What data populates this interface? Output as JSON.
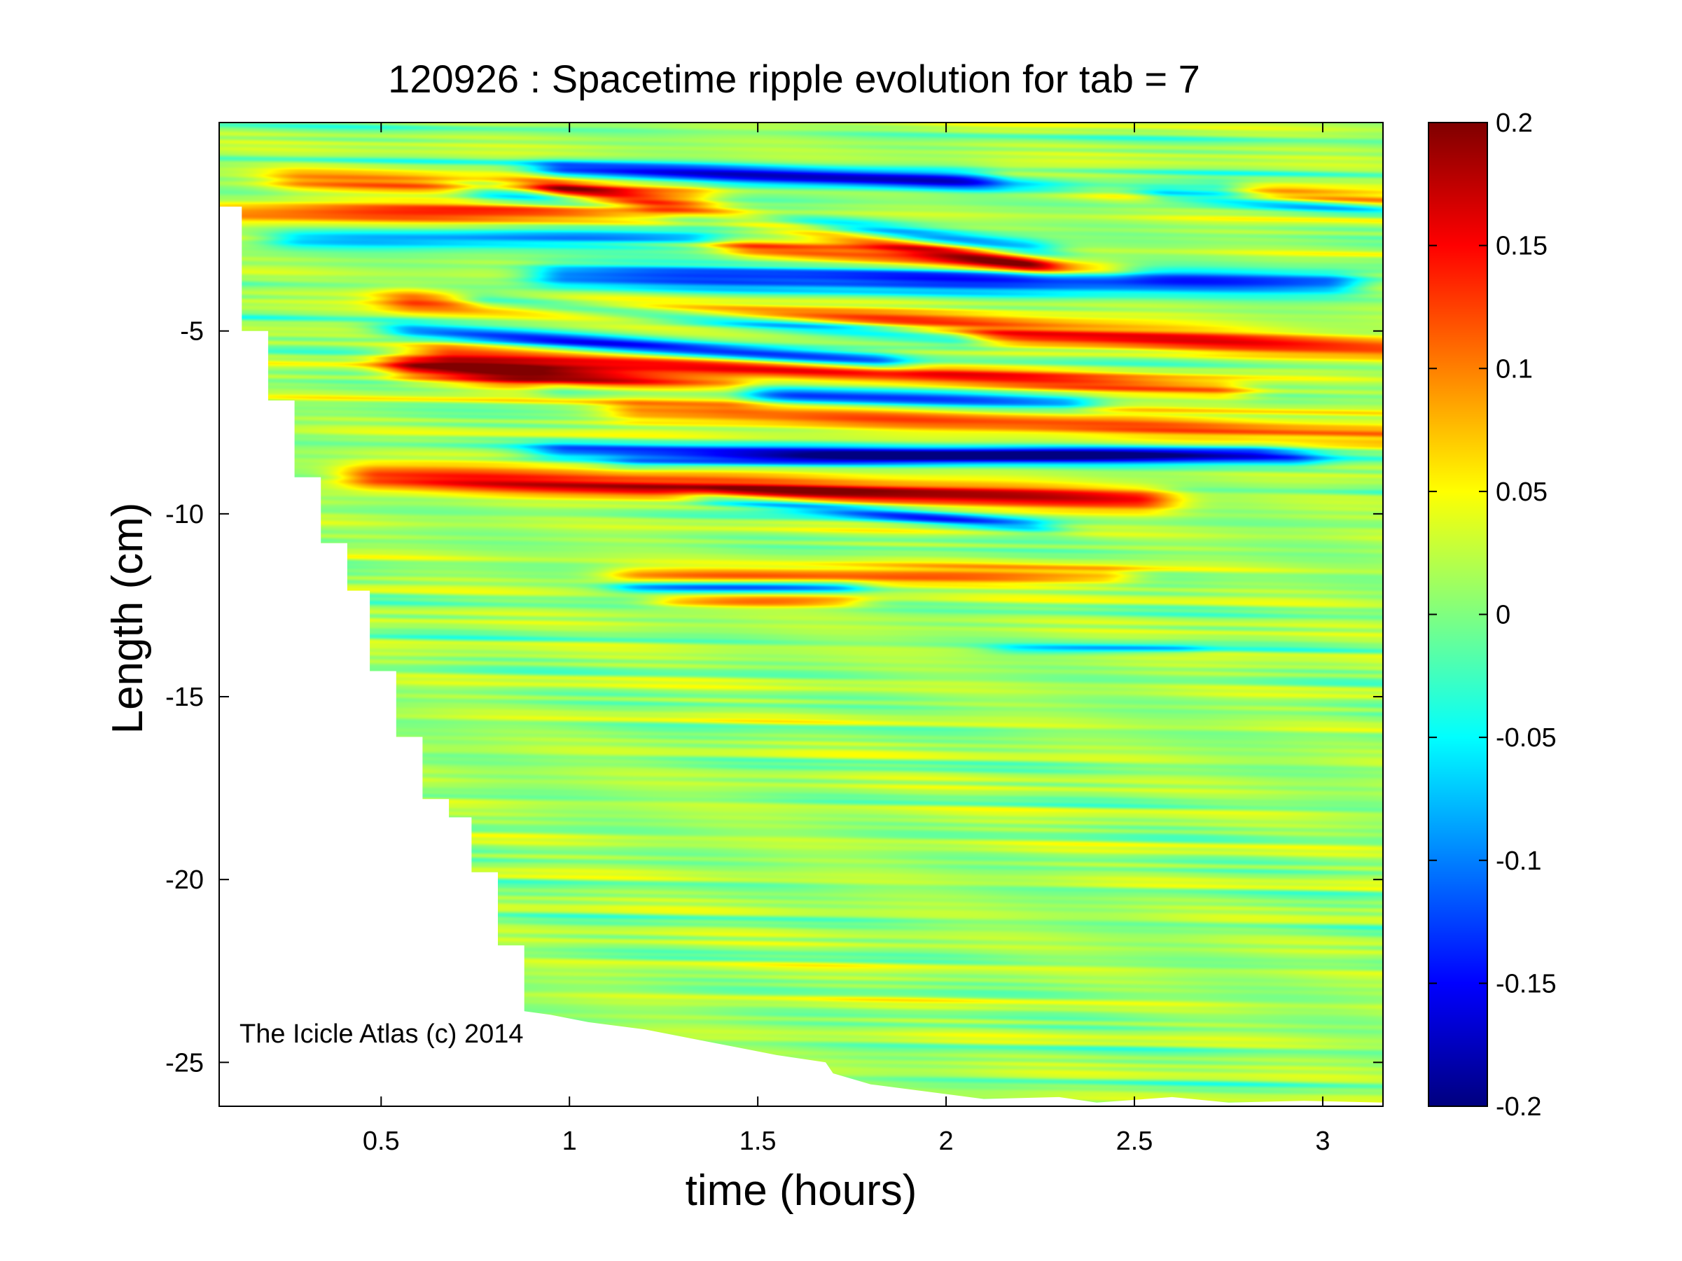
{
  "chart_data": {
    "type": "heatmap",
    "title": "120926 : Spacetime ripple evolution for tab = 7",
    "xlabel": "time (hours)",
    "ylabel": "Length (cm)",
    "xlim": [
      0.07,
      3.16
    ],
    "ylim": [
      -26.2,
      0.7
    ],
    "x_ticks": [
      0.5,
      1,
      1.5,
      2,
      2.5,
      3
    ],
    "x_tick_labels": [
      "0.5",
      "1",
      "1.5",
      "2",
      "2.5",
      "3"
    ],
    "y_ticks": [
      -5,
      -10,
      -15,
      -20,
      -25
    ],
    "y_tick_labels": [
      "-5",
      "-10",
      "-15",
      "-20",
      "-25"
    ],
    "colorbar": {
      "colormap": "jet",
      "clim": [
        -0.2,
        0.2
      ],
      "ticks": [
        0.2,
        0.15,
        0.1,
        0.05,
        0,
        -0.05,
        -0.1,
        -0.15,
        -0.2
      ],
      "tick_labels": [
        "0.2",
        "0.15",
        "0.1",
        "0.05",
        "0",
        "-0.05",
        "-0.1",
        "-0.15",
        "-0.2"
      ]
    },
    "icicle_tip_length_cm": [
      {
        "t": 0.07,
        "y": -1.6
      },
      {
        "t": 0.13,
        "y": -1.6
      },
      {
        "t": 0.13,
        "y": -5.0
      },
      {
        "t": 0.2,
        "y": -5.0
      },
      {
        "t": 0.2,
        "y": -6.9
      },
      {
        "t": 0.27,
        "y": -6.9
      },
      {
        "t": 0.27,
        "y": -9.0
      },
      {
        "t": 0.34,
        "y": -9.0
      },
      {
        "t": 0.34,
        "y": -10.8
      },
      {
        "t": 0.41,
        "y": -10.8
      },
      {
        "t": 0.41,
        "y": -12.1
      },
      {
        "t": 0.47,
        "y": -12.1
      },
      {
        "t": 0.47,
        "y": -14.3
      },
      {
        "t": 0.54,
        "y": -14.3
      },
      {
        "t": 0.54,
        "y": -16.1
      },
      {
        "t": 0.61,
        "y": -16.1
      },
      {
        "t": 0.61,
        "y": -17.8
      },
      {
        "t": 0.68,
        "y": -17.8
      },
      {
        "t": 0.68,
        "y": -18.3
      },
      {
        "t": 0.74,
        "y": -18.3
      },
      {
        "t": 0.74,
        "y": -19.8
      },
      {
        "t": 0.81,
        "y": -19.8
      },
      {
        "t": 0.81,
        "y": -21.8
      },
      {
        "t": 0.88,
        "y": -21.8
      },
      {
        "t": 0.88,
        "y": -23.6
      },
      {
        "t": 0.95,
        "y": -23.7
      },
      {
        "t": 1.05,
        "y": -23.9
      },
      {
        "t": 1.2,
        "y": -24.1
      },
      {
        "t": 1.35,
        "y": -24.4
      },
      {
        "t": 1.45,
        "y": -24.6
      },
      {
        "t": 1.55,
        "y": -24.8
      },
      {
        "t": 1.68,
        "y": -25.0
      },
      {
        "t": 1.7,
        "y": -25.3
      },
      {
        "t": 1.8,
        "y": -25.6
      },
      {
        "t": 1.95,
        "y": -25.8
      },
      {
        "t": 2.1,
        "y": -26.0
      },
      {
        "t": 2.3,
        "y": -25.95
      },
      {
        "t": 2.4,
        "y": -26.1
      },
      {
        "t": 2.6,
        "y": -25.95
      },
      {
        "t": 2.75,
        "y": -26.1
      },
      {
        "t": 2.95,
        "y": -26.05
      },
      {
        "t": 3.16,
        "y": -26.1
      }
    ],
    "ripple_features": [
      {
        "y": -0.6,
        "x0": 1.0,
        "x1": 2.7,
        "slope": -0.3,
        "amp": -0.2,
        "w": 0.35
      },
      {
        "y": -0.9,
        "x0": 2.2,
        "x1": 3.16,
        "slope": -0.7,
        "amp": 0.15,
        "w": 0.45
      },
      {
        "y": -1.3,
        "x0": 2.6,
        "x1": 3.16,
        "slope": -0.7,
        "amp": -0.17,
        "w": 0.3
      },
      {
        "y": -0.9,
        "x0": 0.3,
        "x1": 1.3,
        "slope": -0.4,
        "amp": 0.1,
        "w": 0.5
      },
      {
        "y": -1.2,
        "x0": 0.8,
        "x1": 2.2,
        "slope": -1.1,
        "amp": -0.15,
        "w": 0.4
      },
      {
        "y": -1.8,
        "x0": 0.1,
        "x1": 1.2,
        "slope": 0.0,
        "amp": 0.12,
        "w": 0.4
      },
      {
        "y": -1.2,
        "x0": 1.0,
        "x1": 2.2,
        "slope": -1.6,
        "amp": 0.17,
        "w": 0.4
      },
      {
        "y": -2.5,
        "x0": 0.3,
        "x1": 1.3,
        "slope": 0.0,
        "amp": -0.12,
        "w": 0.35
      },
      {
        "y": -3.5,
        "x0": 1.0,
        "x1": 3.0,
        "slope": -0.1,
        "amp": -0.18,
        "w": 0.45
      },
      {
        "y": -2.8,
        "x0": 1.5,
        "x1": 2.4,
        "slope": -0.6,
        "amp": 0.12,
        "w": 0.35
      },
      {
        "y": -4.2,
        "x0": 0.6,
        "x1": 3.16,
        "slope": -0.5,
        "amp": 0.15,
        "w": 0.5
      },
      {
        "y": -4.2,
        "x0": 0.8,
        "x1": 2.0,
        "slope": -0.8,
        "amp": -0.18,
        "w": 0.35
      },
      {
        "y": -5.6,
        "x0": 0.7,
        "x1": 2.7,
        "slope": -0.5,
        "amp": 0.14,
        "w": 0.4
      },
      {
        "y": -5.0,
        "x0": 0.6,
        "x1": 1.8,
        "slope": -0.7,
        "amp": -0.17,
        "w": 0.35
      },
      {
        "y": -6.0,
        "x0": 0.6,
        "x1": 1.4,
        "slope": -0.8,
        "amp": 0.2,
        "w": 0.55
      },
      {
        "y": -6.6,
        "x0": 1.0,
        "x1": 2.3,
        "slope": -0.3,
        "amp": -0.15,
        "w": 0.35
      },
      {
        "y": -7.2,
        "x0": 1.2,
        "x1": 3.16,
        "slope": -0.3,
        "amp": 0.12,
        "w": 0.45
      },
      {
        "y": -8.3,
        "x0": 1.0,
        "x1": 2.9,
        "slope": -0.1,
        "amp": -0.15,
        "w": 0.35
      },
      {
        "y": -8.6,
        "x0": 1.2,
        "x1": 2.8,
        "slope": 0.2,
        "amp": -0.1,
        "w": 0.3
      },
      {
        "y": -9.0,
        "x0": 0.5,
        "x1": 2.5,
        "slope": -0.3,
        "amp": 0.18,
        "w": 0.5
      },
      {
        "y": -9.6,
        "x0": 1.4,
        "x1": 2.2,
        "slope": -0.9,
        "amp": -0.13,
        "w": 0.3
      },
      {
        "y": -11.7,
        "x0": 1.2,
        "x1": 2.4,
        "slope": 0.0,
        "amp": 0.12,
        "w": 0.35
      },
      {
        "y": -12.0,
        "x0": 1.2,
        "x1": 1.7,
        "slope": 0.0,
        "amp": -0.15,
        "w": 0.25
      },
      {
        "y": -12.4,
        "x0": 1.3,
        "x1": 1.7,
        "slope": 0.0,
        "amp": 0.1,
        "w": 0.25
      },
      {
        "y": -13.7,
        "x0": 2.2,
        "x1": 2.6,
        "slope": 0.0,
        "amp": -0.08,
        "w": 0.2
      }
    ],
    "watermark": "The Icicle Atlas (c) 2014"
  }
}
